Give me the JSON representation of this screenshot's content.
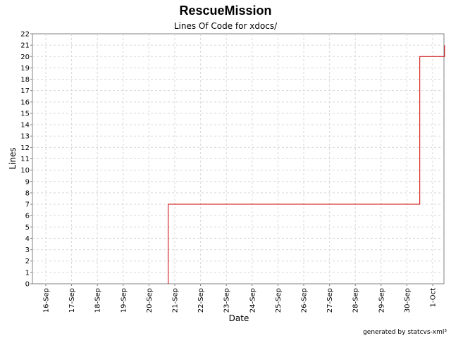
{
  "chart_data": {
    "type": "line",
    "title": "RescueMission",
    "subtitle": "Lines Of Code for xdocs/",
    "xlabel": "Date",
    "ylabel": "Lines",
    "x_ticks": [
      "16-Sep",
      "17-Sep",
      "18-Sep",
      "19-Sep",
      "20-Sep",
      "21-Sep",
      "22-Sep",
      "23-Sep",
      "24-Sep",
      "25-Sep",
      "26-Sep",
      "27-Sep",
      "28-Sep",
      "29-Sep",
      "30-Sep",
      "1-Oct"
    ],
    "ylim": [
      0,
      22
    ],
    "y_ticks": [
      0,
      1,
      2,
      3,
      4,
      5,
      6,
      7,
      8,
      9,
      10,
      11,
      12,
      13,
      14,
      15,
      16,
      17,
      18,
      19,
      20,
      21,
      22
    ],
    "grid": true,
    "step": true,
    "series": [
      {
        "color": "#cc0000",
        "points": [
          {
            "x": "2003-09-20 18:00",
            "y": 0
          },
          {
            "x": "2003-09-20 18:00",
            "y": 7
          },
          {
            "x": "2003-09-30 12:00",
            "y": 7
          },
          {
            "x": "2003-09-30 12:00",
            "y": 20
          },
          {
            "x": "2003-10-01 11:00",
            "y": 20
          },
          {
            "x": "2003-10-01 11:00",
            "y": 21
          }
        ]
      }
    ],
    "footer": "generated by statcvs-xml³"
  }
}
